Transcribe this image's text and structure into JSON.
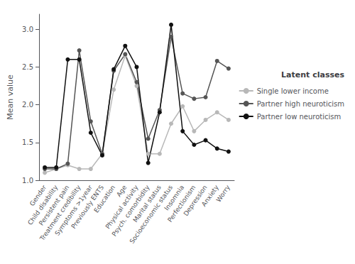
{
  "chart_data": {
    "type": "line",
    "ylabel": "Mean value",
    "legend_title": "Latent classes",
    "categories": [
      "Gender",
      "Child disability",
      "Persistent pain",
      "Treatment credibility",
      "Symptoms >1year",
      "Previously ENTS",
      "Education",
      "Age",
      "Physical activity",
      "Psych. comorbidity",
      "Marital status",
      "Socioeconomic status",
      "Insomnia",
      "Perfectionism",
      "Depression",
      "Anxiety",
      "Worry"
    ],
    "series": [
      {
        "name": "Single lower income",
        "color": "#b8b8b8",
        "marker": "circle",
        "line_style": "solid",
        "values": [
          1.1,
          1.15,
          1.2,
          1.15,
          1.15,
          1.35,
          2.2,
          2.65,
          2.25,
          1.35,
          1.35,
          1.75,
          1.98,
          1.65,
          1.8,
          1.9,
          1.8
        ]
      },
      {
        "name": "Partner high neuroticism",
        "color": "#555555",
        "marker": "circle",
        "line_style": "solid",
        "values": [
          1.15,
          1.15,
          1.22,
          2.72,
          1.78,
          1.35,
          2.45,
          2.67,
          2.3,
          1.55,
          1.93,
          2.9,
          2.15,
          2.08,
          2.1,
          2.58,
          2.48
        ]
      },
      {
        "name": "Partner low neuroticism",
        "color": "#111111",
        "marker": "circle",
        "line_style": "solid",
        "values": [
          1.17,
          1.17,
          2.6,
          2.6,
          1.63,
          1.33,
          2.47,
          2.78,
          2.5,
          1.23,
          1.9,
          3.06,
          1.65,
          1.47,
          1.53,
          1.42,
          1.38
        ]
      }
    ],
    "ylim": [
      1.0,
      3.2
    ],
    "yticks": [
      {
        "value": 1.0,
        "label": "1.0"
      },
      1.5,
      {
        "value": 2.0,
        "label": "2.0"
      },
      2.5,
      {
        "value": 3.0,
        "label": "3.0"
      }
    ],
    "grid": false,
    "legend": "right"
  }
}
